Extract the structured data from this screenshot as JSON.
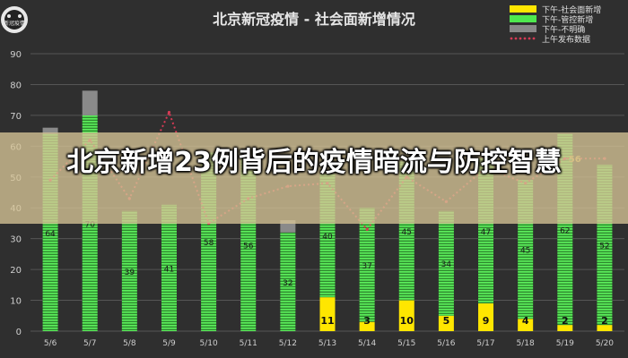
{
  "page": {
    "logo_text": "新冠疫情",
    "overlay_headline": "北京新增23例背后的疫情暗流与防控智慧"
  },
  "chart_data": {
    "type": "bar",
    "title": "北京新冠疫情 - 社会面新增情况",
    "categories": [
      "5/6",
      "5/7",
      "5/8",
      "5/9",
      "5/10",
      "5/11",
      "5/12",
      "5/13",
      "5/14",
      "5/15",
      "5/16",
      "5/17",
      "5/18",
      "5/19",
      "5/20"
    ],
    "series": [
      {
        "name": "下午-社会面新增",
        "color": "#ffe600",
        "values": [
          0,
          0,
          0,
          0,
          0,
          0,
          0,
          11,
          3,
          10,
          5,
          9,
          4,
          2,
          2
        ]
      },
      {
        "name": "下午-管控新增",
        "color": "#4ee84e",
        "values": [
          64,
          70,
          39,
          41,
          58,
          56,
          32,
          40,
          37,
          45,
          34,
          47,
          45,
          62,
          52
        ]
      },
      {
        "name": "下午-不明确",
        "color": "#888888",
        "values": [
          2,
          8,
          0,
          0,
          0,
          0,
          4,
          0,
          0,
          0,
          0,
          0,
          0,
          0,
          0
        ]
      },
      {
        "name": "上午发布数据",
        "color": "#d63a55",
        "type": "line",
        "values": [
          49,
          62,
          43,
          71,
          35,
          43,
          47,
          48,
          33,
          50,
          42,
          53,
          48,
          56,
          56
        ]
      }
    ],
    "data_labels": {
      "social": [
        "",
        "",
        "",
        "",
        "",
        "",
        "",
        "11",
        "3",
        "10",
        "5",
        "9",
        "4",
        "2",
        "2"
      ],
      "controlled": [
        "64",
        "70",
        "39",
        "41",
        "58",
        "56",
        "32",
        "40",
        "37",
        "45",
        "34",
        "47",
        "45",
        "62",
        "52"
      ],
      "morning_last": "56"
    },
    "y_ticks": [
      "0",
      "10",
      "20",
      "30",
      "40",
      "50",
      "60",
      "70",
      "80",
      "90"
    ],
    "ylim": [
      0,
      90
    ],
    "grid": true,
    "legend_position": "top-right"
  }
}
